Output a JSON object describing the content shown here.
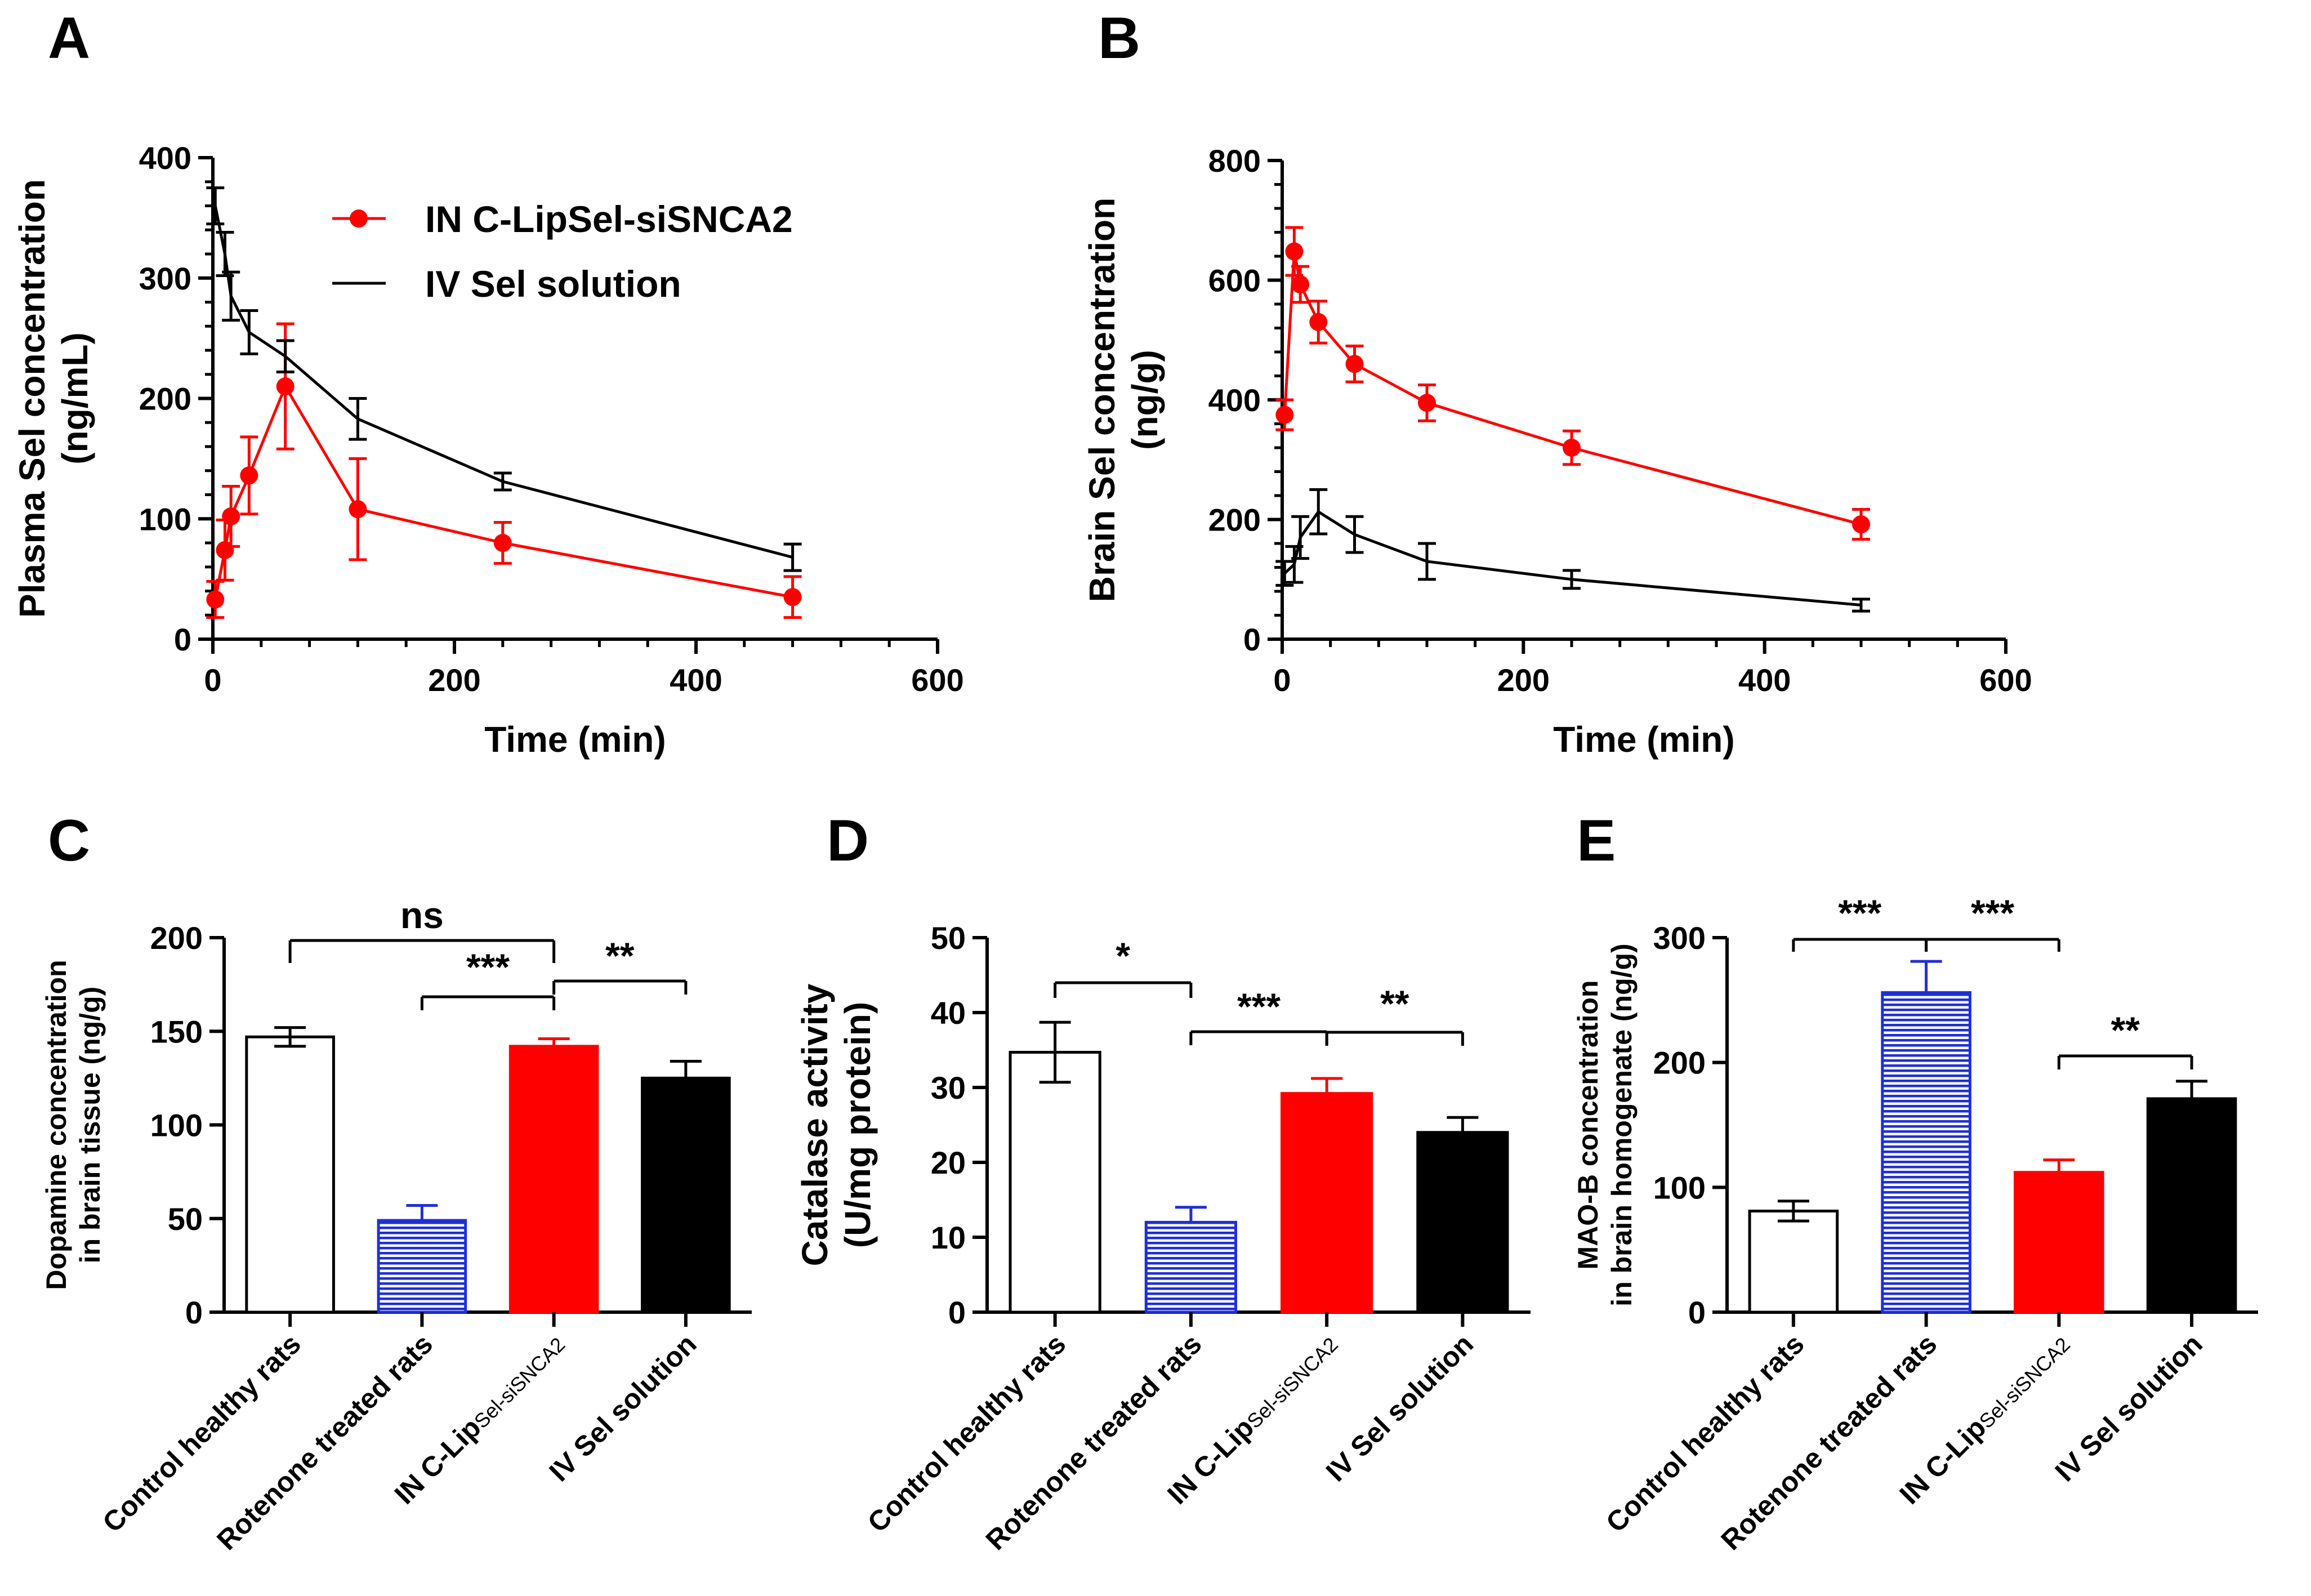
{
  "colors": {
    "red": "#ff0000",
    "blue": "#1f2fd6",
    "black": "#000000",
    "white": "#ffffff"
  },
  "chart_data": [
    {
      "panel": "A",
      "type": "line",
      "xlabel": "Time (min)",
      "ylabel": [
        "Plasma Sel concentration",
        "(ng/mL)"
      ],
      "xlim": [
        0,
        600
      ],
      "ylim": [
        0,
        400
      ],
      "xticks": [
        0,
        200,
        400,
        600
      ],
      "yticks": [
        0,
        100,
        200,
        300,
        400
      ],
      "legend": [
        "IN C-LipSel-siSNCA2",
        "IV Sel solution"
      ],
      "legend_position": "top-right",
      "series": [
        {
          "name": "IN C-LipSel-siSNCA2",
          "color": "#ff0000",
          "marker": "circle",
          "x": [
            2,
            10,
            15,
            30,
            60,
            120,
            240,
            480
          ],
          "y": [
            33,
            74,
            102,
            136,
            210,
            108,
            80,
            35
          ],
          "err": [
            15,
            25,
            25,
            32,
            52,
            42,
            17,
            17
          ]
        },
        {
          "name": "IV Sel solution",
          "color": "#000000",
          "marker": "none",
          "x": [
            2,
            10,
            15,
            30,
            60,
            120,
            240,
            480
          ],
          "y": [
            360,
            320,
            285,
            255,
            235,
            183,
            131,
            68
          ],
          "err": [
            15,
            18,
            20,
            18,
            13,
            17,
            7,
            11
          ]
        }
      ]
    },
    {
      "panel": "B",
      "type": "line",
      "xlabel": "Time (min)",
      "ylabel": [
        "Brain Sel concentration",
        "(ng/g)"
      ],
      "xlim": [
        0,
        600
      ],
      "ylim": [
        0,
        800
      ],
      "xticks": [
        0,
        200,
        400,
        600
      ],
      "yticks": [
        0,
        200,
        400,
        600,
        800
      ],
      "series": [
        {
          "name": "IN C-LipSel-siSNCA2",
          "color": "#ff0000",
          "marker": "circle",
          "x": [
            2,
            10,
            15,
            30,
            60,
            120,
            240,
            480
          ],
          "y": [
            375,
            648,
            593,
            530,
            460,
            395,
            320,
            192
          ],
          "err": [
            25,
            40,
            30,
            35,
            30,
            30,
            28,
            25
          ]
        },
        {
          "name": "IV Sel solution",
          "color": "#000000",
          "marker": "none",
          "x": [
            2,
            10,
            15,
            30,
            60,
            120,
            240,
            480
          ],
          "y": [
            110,
            125,
            170,
            213,
            175,
            130,
            100,
            57
          ],
          "err": [
            20,
            30,
            35,
            37,
            30,
            30,
            15,
            10
          ]
        }
      ]
    },
    {
      "panel": "C",
      "type": "bar",
      "ylabel": [
        "Dopamine concentration",
        "in brain tissue (ng/g)"
      ],
      "ylim": [
        0,
        200
      ],
      "yticks": [
        0,
        50,
        100,
        150,
        200
      ],
      "categories": [
        {
          "main": "Control healthy rats",
          "sub": ""
        },
        {
          "main": "Rotenone treated rats",
          "sub": ""
        },
        {
          "main": "IN C-Lip",
          "sub": "Sel-siSNCA2"
        },
        {
          "main": "IV Sel solution",
          "sub": ""
        }
      ],
      "values": [
        147,
        49,
        142,
        125
      ],
      "errors": [
        5,
        8,
        4,
        9
      ],
      "significance": [
        {
          "from": 0,
          "to": 2,
          "label": "ns"
        },
        {
          "from": 1,
          "to": 2,
          "label": "***"
        },
        {
          "from": 2,
          "to": 3,
          "label": "**"
        }
      ]
    },
    {
      "panel": "D",
      "type": "bar",
      "ylabel": [
        "Catalase activity",
        "(U/mg protein)"
      ],
      "ylim": [
        0,
        50
      ],
      "yticks": [
        0,
        10,
        20,
        30,
        40,
        50
      ],
      "categories": [
        {
          "main": "Control healthy rats",
          "sub": ""
        },
        {
          "main": "Rotenone treated rats",
          "sub": ""
        },
        {
          "main": "IN C-Lip",
          "sub": "Sel-siSNCA2"
        },
        {
          "main": "IV Sel solution",
          "sub": ""
        }
      ],
      "values": [
        34.7,
        12,
        29.2,
        24
      ],
      "errors": [
        4,
        2,
        2,
        2
      ],
      "significance": [
        {
          "from": 0,
          "to": 1,
          "label": "*"
        },
        {
          "from": 1,
          "to": 2,
          "label": "***"
        },
        {
          "from": 2,
          "to": 3,
          "label": "**"
        }
      ]
    },
    {
      "panel": "E",
      "type": "bar",
      "ylabel": [
        "MAO-B concentration",
        "in brain homogenate (ng/g)"
      ],
      "ylim": [
        0,
        300
      ],
      "yticks": [
        0,
        100,
        200,
        300
      ],
      "categories": [
        {
          "main": "Control healthy rats",
          "sub": ""
        },
        {
          "main": "Rotenone treated rats",
          "sub": ""
        },
        {
          "main": "IN C-Lip",
          "sub": "Sel-siSNCA2"
        },
        {
          "main": "IV Sel solution",
          "sub": ""
        }
      ],
      "values": [
        81,
        256,
        112,
        171
      ],
      "errors": [
        8,
        25,
        10,
        14
      ],
      "significance": [
        {
          "from": 0,
          "to": 1,
          "label": "***"
        },
        {
          "from": 1,
          "to": 2,
          "label": "***"
        },
        {
          "from": 2,
          "to": 3,
          "label": "**"
        }
      ]
    }
  ]
}
